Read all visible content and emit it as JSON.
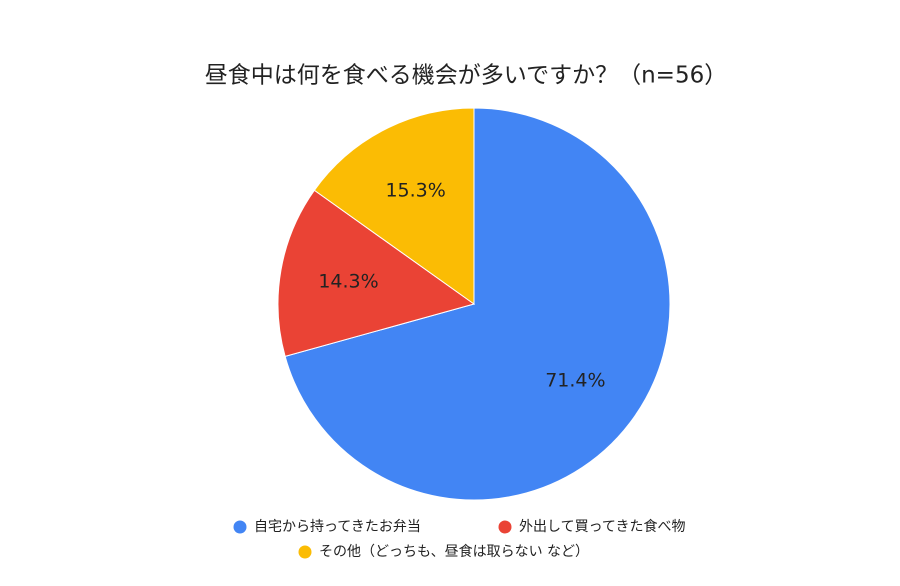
{
  "chart_data": {
    "type": "pie",
    "title": "昼食中は何を食べる機会が多いですか？（n=56）",
    "categories": [
      "自宅から持ってきたお弁当",
      "外出して買ってきた食べ物",
      "その他（どっちも、昼食は取らない など）"
    ],
    "values": [
      71.4,
      14.3,
      15.3
    ],
    "value_labels": [
      "71.4%",
      "14.3%",
      "15.3%"
    ],
    "colors": [
      "#4285f4",
      "#ea4335",
      "#fbbc04"
    ],
    "legend": "bottom"
  }
}
